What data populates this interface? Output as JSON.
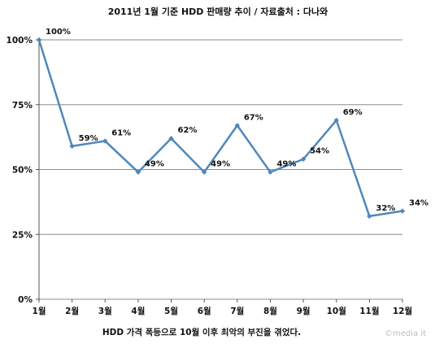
{
  "chart_data": {
    "type": "line",
    "title": "2011년 1월 기준 HDD 판매량 추이 / 자료출처 : 다나와",
    "caption": "HDD 가격 폭등으로 10월 이후 최악의 부진을 겪었다.",
    "watermark": "©media it",
    "categories": [
      "1월",
      "2월",
      "3월",
      "4월",
      "5월",
      "6월",
      "7월",
      "8월",
      "9월",
      "10월",
      "11월",
      "12월"
    ],
    "values": [
      100,
      59,
      61,
      49,
      62,
      49,
      67,
      49,
      54,
      69,
      32,
      34
    ],
    "value_labels": [
      "100%",
      "59%",
      "61%",
      "49%",
      "62%",
      "49%",
      "67%",
      "49%",
      "54%",
      "69%",
      "32%",
      "34%"
    ],
    "ylim": [
      0,
      100
    ],
    "yticks": [
      0,
      25,
      50,
      75,
      100
    ],
    "ytick_labels": [
      "0%",
      "25%",
      "50%",
      "75%",
      "100%"
    ],
    "xlabel": "",
    "ylabel": "",
    "grid": true,
    "line_color": "#4f88bd",
    "grid_color": "#8c8c8c"
  }
}
